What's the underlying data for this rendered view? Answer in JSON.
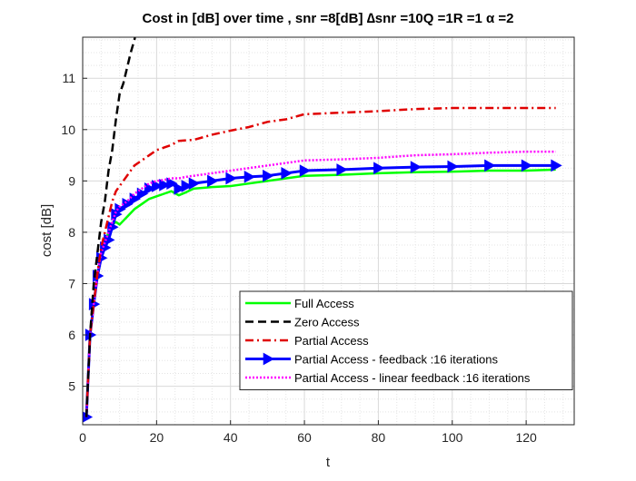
{
  "chart_data": {
    "type": "line",
    "title": "Cost in [dB] over time , snr =8[dB] ∆snr =10Q =1R =1 α =2",
    "xlabel": "t",
    "ylabel": "cost [dB]",
    "xlim": [
      0,
      133
    ],
    "ylim": [
      4.25,
      11.8
    ],
    "xticks": [
      0,
      20,
      40,
      60,
      80,
      100,
      120
    ],
    "yticks": [
      5,
      6,
      7,
      8,
      9,
      10,
      11
    ],
    "grid": true,
    "minor_grid": true,
    "legend_position": "bottom-right",
    "series": [
      {
        "name": "Full Access",
        "color": "#00ff00",
        "style": "solid",
        "x": [
          1,
          2,
          3,
          4,
          5,
          6,
          7,
          8,
          9,
          10,
          12,
          14,
          16,
          18,
          20,
          22,
          24,
          26,
          28,
          30,
          35,
          40,
          45,
          50,
          55,
          60,
          70,
          80,
          90,
          100,
          110,
          120,
          128
        ],
        "y": [
          4.4,
          6.0,
          6.6,
          7.2,
          7.6,
          7.8,
          8.0,
          8.15,
          8.2,
          8.15,
          8.3,
          8.45,
          8.55,
          8.65,
          8.7,
          8.75,
          8.8,
          8.72,
          8.78,
          8.85,
          8.88,
          8.9,
          8.95,
          9.0,
          9.05,
          9.1,
          9.12,
          9.15,
          9.17,
          9.18,
          9.2,
          9.2,
          9.22
        ]
      },
      {
        "name": "Zero Access",
        "color": "#000000",
        "style": "dashed",
        "x": [
          1,
          2,
          3,
          4,
          5,
          6,
          7,
          8,
          9,
          10,
          11,
          12,
          13,
          14,
          15
        ],
        "y": [
          4.4,
          6.0,
          7.0,
          7.6,
          8.2,
          8.6,
          9.2,
          9.6,
          10.2,
          10.7,
          10.9,
          11.2,
          11.5,
          11.75,
          12.1
        ]
      },
      {
        "name": "Partial Access",
        "color": "#e00000",
        "style": "dashdot",
        "x": [
          1,
          2,
          3,
          4,
          5,
          6,
          7,
          8,
          9,
          10,
          12,
          14,
          16,
          18,
          20,
          22,
          24,
          26,
          30,
          35,
          40,
          45,
          50,
          55,
          60,
          70,
          80,
          90,
          100,
          110,
          120,
          128
        ],
        "y": [
          4.4,
          6.0,
          6.6,
          7.2,
          7.7,
          8.0,
          8.3,
          8.6,
          8.8,
          8.9,
          9.1,
          9.3,
          9.4,
          9.5,
          9.6,
          9.65,
          9.7,
          9.78,
          9.8,
          9.9,
          9.98,
          10.05,
          10.15,
          10.2,
          10.3,
          10.33,
          10.36,
          10.4,
          10.42,
          10.42,
          10.42,
          10.42
        ]
      },
      {
        "name": "Partial Access - feedback :16 iterations",
        "color": "#0000ff",
        "style": "solid-triangle",
        "x": [
          1,
          2,
          3,
          4,
          5,
          6,
          7,
          8,
          9,
          10,
          12,
          14,
          16,
          18,
          20,
          22,
          24,
          26,
          28,
          30,
          35,
          40,
          45,
          50,
          55,
          60,
          70,
          80,
          90,
          100,
          110,
          120,
          128
        ],
        "y": [
          4.4,
          6.0,
          6.6,
          7.15,
          7.5,
          7.7,
          7.85,
          8.1,
          8.35,
          8.45,
          8.55,
          8.65,
          8.75,
          8.85,
          8.9,
          8.92,
          8.95,
          8.85,
          8.9,
          8.95,
          9.0,
          9.05,
          9.08,
          9.1,
          9.15,
          9.2,
          9.22,
          9.25,
          9.27,
          9.28,
          9.3,
          9.3,
          9.3
        ]
      },
      {
        "name": "Partial Access - linear feedback :16 iterations",
        "color": "#ff00ff",
        "style": "dotted",
        "x": [
          1,
          2,
          3,
          4,
          5,
          6,
          7,
          8,
          9,
          10,
          12,
          14,
          16,
          18,
          20,
          22,
          24,
          26,
          28,
          30,
          35,
          40,
          45,
          50,
          55,
          60,
          70,
          80,
          90,
          100,
          110,
          120,
          128
        ],
        "y": [
          4.4,
          6.0,
          6.6,
          7.2,
          7.6,
          7.8,
          8.0,
          8.2,
          8.4,
          8.5,
          8.6,
          8.75,
          8.85,
          8.95,
          9.0,
          9.02,
          9.05,
          9.05,
          9.08,
          9.1,
          9.15,
          9.2,
          9.25,
          9.3,
          9.35,
          9.4,
          9.42,
          9.45,
          9.5,
          9.52,
          9.55,
          9.57,
          9.57
        ]
      }
    ]
  }
}
